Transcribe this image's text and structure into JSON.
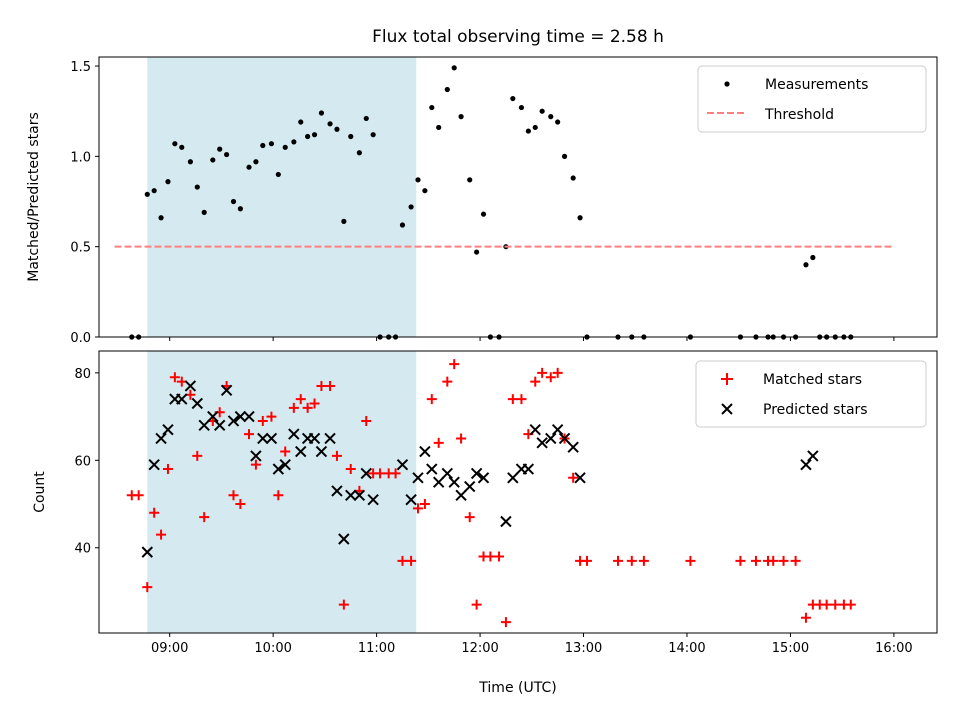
{
  "chart_data": [
    {
      "type": "scatter",
      "title": "Flux total observing time = 2.58 h",
      "ylabel": "Matched/Predicted stars",
      "xlabel": "",
      "xlim": [
        "08:19",
        "16:25"
      ],
      "ylim": [
        0,
        1.55
      ],
      "yticks": [
        "0.0",
        "0.5",
        "1.0",
        "1.5"
      ],
      "x_time_ticks": [
        "09:00",
        "10:00",
        "11:00",
        "12:00",
        "13:00",
        "14:00",
        "15:00",
        "16:00"
      ],
      "x_ticklabels_visible": false,
      "highlight_span": {
        "start": "08:47",
        "end": "11:23",
        "color": "#d4eaf0"
      },
      "legend": {
        "position": "top-right",
        "entries": [
          "Measurements",
          "Threshold"
        ]
      },
      "series": [
        {
          "name": "Measurements",
          "marker": "dot",
          "color": "#000000",
          "points": [
            [
              "08:38",
              0
            ],
            [
              "08:42",
              0
            ],
            [
              "08:47",
              0.79
            ],
            [
              "08:51",
              0.81
            ],
            [
              "08:55",
              0.66
            ],
            [
              "08:59",
              0.86
            ],
            [
              "09:03",
              1.07
            ],
            [
              "09:07",
              1.05
            ],
            [
              "09:12",
              0.97
            ],
            [
              "09:16",
              0.83
            ],
            [
              "09:20",
              0.69
            ],
            [
              "09:25",
              0.98
            ],
            [
              "09:29",
              1.04
            ],
            [
              "09:33",
              1.01
            ],
            [
              "09:37",
              0.75
            ],
            [
              "09:41",
              0.71
            ],
            [
              "09:46",
              0.94
            ],
            [
              "09:50",
              0.97
            ],
            [
              "09:54",
              1.06
            ],
            [
              "09:59",
              1.07
            ],
            [
              "10:03",
              0.9
            ],
            [
              "10:07",
              1.05
            ],
            [
              "10:12",
              1.08
            ],
            [
              "10:16",
              1.19
            ],
            [
              "10:20",
              1.11
            ],
            [
              "10:24",
              1.12
            ],
            [
              "10:28",
              1.24
            ],
            [
              "10:33",
              1.18
            ],
            [
              "10:37",
              1.15
            ],
            [
              "10:41",
              0.64
            ],
            [
              "10:45",
              1.11
            ],
            [
              "10:50",
              1.02
            ],
            [
              "10:54",
              1.21
            ],
            [
              "10:58",
              1.12
            ],
            [
              "11:02",
              0
            ],
            [
              "11:07",
              0
            ],
            [
              "11:11",
              0
            ],
            [
              "11:15",
              0.62
            ],
            [
              "11:20",
              0.72
            ],
            [
              "11:24",
              0.87
            ],
            [
              "11:28",
              0.81
            ],
            [
              "11:32",
              1.27
            ],
            [
              "11:36",
              1.16
            ],
            [
              "11:41",
              1.37
            ],
            [
              "11:45",
              1.49
            ],
            [
              "11:49",
              1.22
            ],
            [
              "11:54",
              0.87
            ],
            [
              "11:58",
              0.47
            ],
            [
              "12:02",
              0.68
            ],
            [
              "12:06",
              0
            ],
            [
              "12:11",
              0
            ],
            [
              "12:15",
              0.5
            ],
            [
              "12:19",
              1.32
            ],
            [
              "12:24",
              1.27
            ],
            [
              "12:28",
              1.14
            ],
            [
              "12:32",
              1.16
            ],
            [
              "12:36",
              1.25
            ],
            [
              "12:41",
              1.22
            ],
            [
              "12:45",
              1.19
            ],
            [
              "12:49",
              1.0
            ],
            [
              "12:54",
              0.88
            ],
            [
              "12:58",
              0.66
            ],
            [
              "13:02",
              0
            ],
            [
              "13:20",
              0
            ],
            [
              "13:28",
              0
            ],
            [
              "13:35",
              0
            ],
            [
              "14:02",
              0
            ],
            [
              "14:31",
              0
            ],
            [
              "14:40",
              0
            ],
            [
              "14:47",
              0
            ],
            [
              "14:50",
              0
            ],
            [
              "14:56",
              0
            ],
            [
              "15:03",
              0
            ],
            [
              "15:09",
              0.4
            ],
            [
              "15:13",
              0.44
            ],
            [
              "15:17",
              0
            ],
            [
              "15:21",
              0
            ],
            [
              "15:26",
              0
            ],
            [
              "15:31",
              0
            ],
            [
              "15:35",
              0
            ]
          ]
        },
        {
          "name": "Threshold",
          "marker": "dashed-line",
          "color": "#ff7f7f",
          "points": [
            [
              "08:28",
              0.5
            ],
            [
              "16:00",
              0.5
            ]
          ]
        }
      ]
    },
    {
      "type": "scatter",
      "title": "",
      "xlabel": "Time (UTC)",
      "ylabel": "Count",
      "xlim": [
        "08:19",
        "16:25"
      ],
      "ylim": [
        20.5,
        85
      ],
      "yticks": [
        "40",
        "60",
        "80"
      ],
      "x_time_ticks": [
        "09:00",
        "10:00",
        "11:00",
        "12:00",
        "13:00",
        "14:00",
        "15:00",
        "16:00"
      ],
      "highlight_span": {
        "start": "08:47",
        "end": "11:23",
        "color": "#d4eaf0"
      },
      "legend": {
        "position": "top-right",
        "entries": [
          "Matched stars",
          "Predicted stars"
        ]
      },
      "series": [
        {
          "name": "Matched stars",
          "marker": "plus",
          "color": "#ff0000",
          "points": [
            [
              "08:38",
              52
            ],
            [
              "08:42",
              52
            ],
            [
              "08:47",
              31
            ],
            [
              "08:51",
              48
            ],
            [
              "08:55",
              43
            ],
            [
              "08:59",
              58
            ],
            [
              "09:03",
              79
            ],
            [
              "09:07",
              78
            ],
            [
              "09:12",
              75
            ],
            [
              "09:16",
              61
            ],
            [
              "09:20",
              47
            ],
            [
              "09:25",
              69
            ],
            [
              "09:29",
              71
            ],
            [
              "09:33",
              77
            ],
            [
              "09:37",
              52
            ],
            [
              "09:41",
              50
            ],
            [
              "09:46",
              66
            ],
            [
              "09:50",
              59
            ],
            [
              "09:54",
              69
            ],
            [
              "09:59",
              70
            ],
            [
              "10:03",
              52
            ],
            [
              "10:07",
              62
            ],
            [
              "10:12",
              72
            ],
            [
              "10:16",
              74
            ],
            [
              "10:20",
              72
            ],
            [
              "10:24",
              73
            ],
            [
              "10:28",
              77
            ],
            [
              "10:33",
              77
            ],
            [
              "10:37",
              61
            ],
            [
              "10:41",
              27
            ],
            [
              "10:45",
              58
            ],
            [
              "10:50",
              53
            ],
            [
              "10:54",
              69
            ],
            [
              "10:58",
              57
            ],
            [
              "11:02",
              57
            ],
            [
              "11:07",
              57
            ],
            [
              "11:11",
              57
            ],
            [
              "11:15",
              37
            ],
            [
              "11:20",
              37
            ],
            [
              "11:24",
              49
            ],
            [
              "11:28",
              50
            ],
            [
              "11:32",
              74
            ],
            [
              "11:36",
              64
            ],
            [
              "11:41",
              78
            ],
            [
              "11:45",
              82
            ],
            [
              "11:49",
              65
            ],
            [
              "11:54",
              47
            ],
            [
              "11:58",
              27
            ],
            [
              "12:02",
              38
            ],
            [
              "12:06",
              38
            ],
            [
              "12:11",
              38
            ],
            [
              "12:15",
              23
            ],
            [
              "12:19",
              74
            ],
            [
              "12:24",
              74
            ],
            [
              "12:28",
              66
            ],
            [
              "12:32",
              78
            ],
            [
              "12:36",
              80
            ],
            [
              "12:41",
              79
            ],
            [
              "12:45",
              80
            ],
            [
              "12:49",
              65
            ],
            [
              "12:54",
              56
            ],
            [
              "12:58",
              37
            ],
            [
              "13:02",
              37
            ],
            [
              "13:20",
              37
            ],
            [
              "13:28",
              37
            ],
            [
              "13:35",
              37
            ],
            [
              "14:02",
              37
            ],
            [
              "14:31",
              37
            ],
            [
              "14:40",
              37
            ],
            [
              "14:47",
              37
            ],
            [
              "14:50",
              37
            ],
            [
              "14:56",
              37
            ],
            [
              "15:03",
              37
            ],
            [
              "15:09",
              24
            ],
            [
              "15:13",
              27
            ],
            [
              "15:17",
              27
            ],
            [
              "15:21",
              27
            ],
            [
              "15:26",
              27
            ],
            [
              "15:31",
              27
            ],
            [
              "15:35",
              27
            ]
          ]
        },
        {
          "name": "Predicted stars",
          "marker": "x",
          "color": "#000000",
          "points": [
            [
              "08:47",
              39
            ],
            [
              "08:51",
              59
            ],
            [
              "08:55",
              65
            ],
            [
              "08:59",
              67
            ],
            [
              "09:03",
              74
            ],
            [
              "09:07",
              74
            ],
            [
              "09:12",
              77
            ],
            [
              "09:16",
              73
            ],
            [
              "09:20",
              68
            ],
            [
              "09:25",
              70
            ],
            [
              "09:29",
              68
            ],
            [
              "09:33",
              76
            ],
            [
              "09:37",
              69
            ],
            [
              "09:41",
              70
            ],
            [
              "09:46",
              70
            ],
            [
              "09:50",
              61
            ],
            [
              "09:54",
              65
            ],
            [
              "09:59",
              65
            ],
            [
              "10:03",
              58
            ],
            [
              "10:07",
              59
            ],
            [
              "10:12",
              66
            ],
            [
              "10:16",
              62
            ],
            [
              "10:20",
              65
            ],
            [
              "10:24",
              65
            ],
            [
              "10:28",
              62
            ],
            [
              "10:33",
              65
            ],
            [
              "10:37",
              53
            ],
            [
              "10:41",
              42
            ],
            [
              "10:45",
              52
            ],
            [
              "10:50",
              52
            ],
            [
              "10:54",
              57
            ],
            [
              "10:58",
              51
            ],
            [
              "11:15",
              59
            ],
            [
              "11:20",
              51
            ],
            [
              "11:24",
              56
            ],
            [
              "11:28",
              62
            ],
            [
              "11:32",
              58
            ],
            [
              "11:36",
              55
            ],
            [
              "11:41",
              57
            ],
            [
              "11:45",
              55
            ],
            [
              "11:49",
              52
            ],
            [
              "11:54",
              54
            ],
            [
              "11:58",
              57
            ],
            [
              "12:02",
              56
            ],
            [
              "12:15",
              46
            ],
            [
              "12:19",
              56
            ],
            [
              "12:24",
              58
            ],
            [
              "12:28",
              58
            ],
            [
              "12:32",
              67
            ],
            [
              "12:36",
              64
            ],
            [
              "12:41",
              65
            ],
            [
              "12:45",
              67
            ],
            [
              "12:49",
              65
            ],
            [
              "12:54",
              63
            ],
            [
              "12:58",
              56
            ],
            [
              "15:09",
              59
            ],
            [
              "15:13",
              61
            ]
          ]
        }
      ]
    }
  ]
}
